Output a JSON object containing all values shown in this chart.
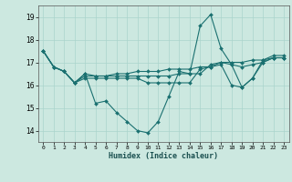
{
  "xlabel": "Humidex (Indice chaleur)",
  "bg_color": "#cce8e0",
  "line_color": "#1a7070",
  "grid_color": "#aad4cc",
  "xlim": [
    -0.5,
    23.5
  ],
  "ylim": [
    13.5,
    19.5
  ],
  "yticks": [
    14,
    15,
    16,
    17,
    18,
    19
  ],
  "xticks": [
    0,
    1,
    2,
    3,
    4,
    5,
    6,
    7,
    8,
    9,
    10,
    11,
    12,
    13,
    14,
    15,
    16,
    17,
    18,
    19,
    20,
    21,
    22,
    23
  ],
  "series": [
    [
      17.5,
      16.8,
      16.6,
      16.1,
      16.5,
      15.2,
      15.3,
      14.8,
      14.4,
      14.0,
      13.9,
      14.4,
      15.5,
      16.6,
      16.5,
      18.6,
      19.1,
      17.6,
      16.9,
      15.9,
      16.3,
      17.1,
      17.3,
      17.3
    ],
    [
      17.5,
      16.8,
      16.6,
      16.1,
      16.4,
      16.4,
      16.4,
      16.5,
      16.5,
      16.6,
      16.6,
      16.6,
      16.7,
      16.7,
      16.7,
      16.8,
      16.8,
      17.0,
      17.0,
      17.0,
      17.1,
      17.1,
      17.2,
      17.2
    ],
    [
      17.5,
      16.8,
      16.6,
      16.1,
      16.3,
      16.3,
      16.3,
      16.3,
      16.3,
      16.3,
      16.1,
      16.1,
      16.1,
      16.1,
      16.1,
      16.7,
      16.8,
      16.9,
      16.0,
      15.9,
      16.3,
      17.0,
      17.2,
      17.2
    ],
    [
      17.5,
      16.8,
      16.6,
      16.1,
      16.5,
      16.4,
      16.4,
      16.4,
      16.4,
      16.4,
      16.4,
      16.4,
      16.4,
      16.5,
      16.5,
      16.5,
      16.9,
      17.0,
      16.9,
      16.8,
      16.9,
      17.0,
      17.2,
      17.2
    ]
  ]
}
